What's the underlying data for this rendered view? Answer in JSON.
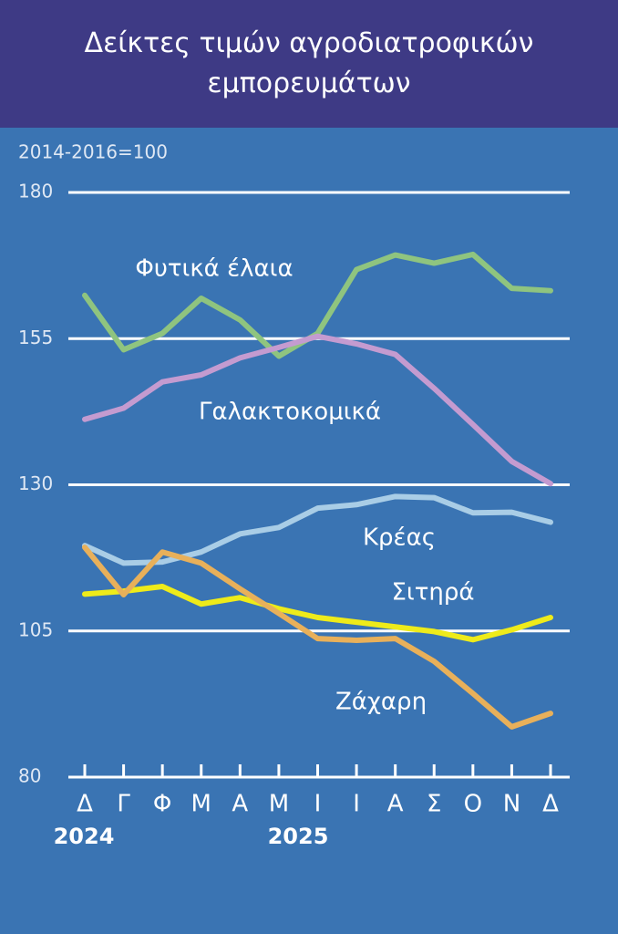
{
  "chart_data": {
    "type": "line",
    "title": "Δείκτες τιμών αγροδιατροφικών εμπορευμάτων",
    "y_label": "2014-2016=100",
    "categories": [
      "Δ",
      "Γ",
      "Φ",
      "Μ",
      "Α",
      "Μ",
      "Ι",
      "Ι",
      "Α",
      "Σ",
      "Ο",
      "Ν",
      "Δ"
    ],
    "year_labels": [
      "2024",
      "2025"
    ],
    "ylim": [
      80,
      180
    ],
    "yticks": [
      80,
      105,
      130,
      155,
      180
    ],
    "grid": true,
    "series": [
      {
        "name": "Φυτικά έλαια",
        "color": "#8fc47f",
        "values": [
          162.4,
          153.1,
          155.9,
          161.9,
          158.2,
          152.0,
          155.9,
          166.8,
          169.3,
          167.9,
          169.4,
          163.6,
          163.2
        ]
      },
      {
        "name": "Γαλακτοκομικά",
        "color": "#c49bd0",
        "values": [
          141.2,
          143.1,
          147.6,
          148.8,
          151.7,
          153.5,
          155.4,
          154.1,
          152.3,
          146.5,
          140.3,
          134.0,
          130.2
        ]
      },
      {
        "name": "Κρέας",
        "color": "#a9cde6",
        "values": [
          119.6,
          116.6,
          116.8,
          118.5,
          121.6,
          122.7,
          126.0,
          126.6,
          128.0,
          127.8,
          125.2,
          125.3,
          123.6
        ]
      },
      {
        "name": "Σιτηρά",
        "color": "#eeeb1a",
        "values": [
          111.3,
          111.8,
          112.6,
          109.6,
          110.7,
          108.8,
          107.3,
          106.5,
          105.7,
          104.9,
          103.5,
          105.2,
          107.3
        ]
      },
      {
        "name": "Ζάχαρη",
        "color": "#e8b05a",
        "values": [
          119.3,
          111.2,
          118.5,
          116.6,
          112.2,
          108.0,
          103.7,
          103.4,
          103.7,
          99.8,
          94.3,
          88.6,
          90.9
        ]
      }
    ]
  }
}
